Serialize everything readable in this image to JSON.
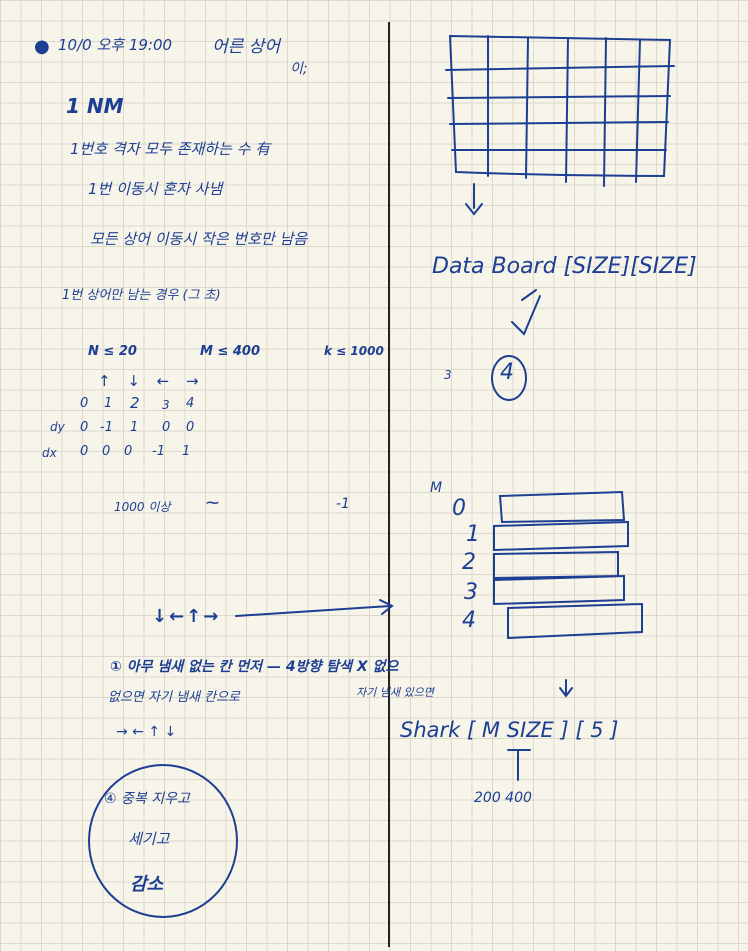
{
  "left": {
    "line1": "10/0 오후 19:00",
    "line1_b": "어른 상어",
    "line1_c": "이;",
    "line2": "1 NM",
    "line3": "1번호 격자 모두 존재하는 수 有",
    "line4": "1번 이동시 혼자 사냄",
    "line5": "모든 상어 이동시 작은 번호만 남음",
    "line6": "1번 상어만 남는 경우 (그 초)",
    "constraints": [
      "N ≤ 20",
      "M ≤ 400",
      "k ≤ 1000"
    ],
    "dir_arrows": "↑ ↓ ← →",
    "dir_index": [
      "0",
      "1",
      "2",
      "3",
      "4"
    ],
    "dy_label": "dy",
    "dy_values": [
      "0",
      "-1",
      "1",
      "0",
      "0"
    ],
    "dx_label": "dx",
    "dx_values": [
      "0",
      "0",
      "0",
      "-1",
      "1"
    ],
    "line_1000": "1000 이상",
    "line_1000_b": "-1",
    "order_arrows": "↓←↑→",
    "step1": "① 아무 냄새 없는 칸 먼저 — 4방향 탐색 X 없으",
    "step1_b": "없으면 자기 냄새 칸으로",
    "step1_c": "자기 냄새 있으면",
    "step2_arrows": "→ ← ↑ ↓",
    "circle_note": [
      "④ 중복 지우고",
      "세기고",
      "감소"
    ]
  },
  "right": {
    "board_label": "Data Board [SIZE][SIZE]",
    "mark_3": "3",
    "mark_4": "4",
    "m_label": "M",
    "shark_rows": [
      "0",
      "1",
      "2",
      "3",
      "4"
    ],
    "shark_label": "Shark [ M SIZE ] [ 5 ]",
    "shark_note": "200 400"
  }
}
